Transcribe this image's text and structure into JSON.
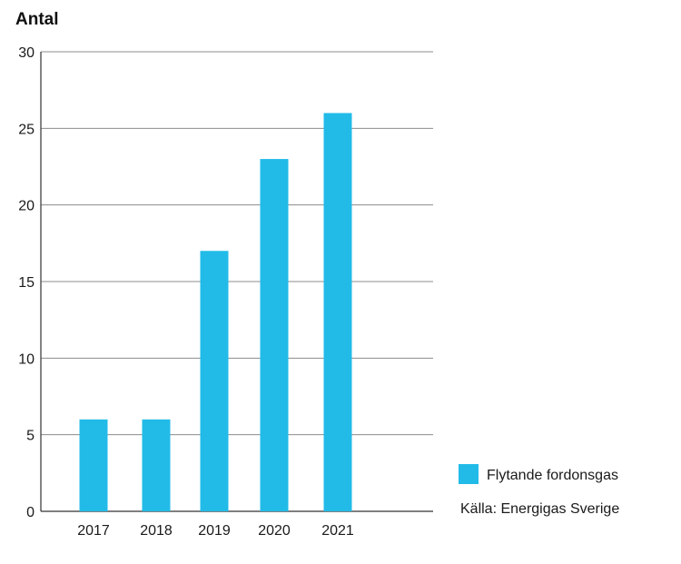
{
  "chart_data": {
    "type": "bar",
    "ylabel": "Antal",
    "xlabel": "",
    "categories": [
      "2017",
      "2018",
      "2019",
      "2020",
      "2021"
    ],
    "series": [
      {
        "name": "Flytande fordonsgas",
        "values": [
          6,
          6,
          17,
          23,
          26
        ],
        "color": "#22BBE8"
      }
    ],
    "ylim": [
      0,
      30
    ],
    "yticks": [
      "0",
      "5",
      "10",
      "15",
      "20",
      "25",
      "30"
    ],
    "grid": true,
    "legend_position": "right"
  },
  "source": "Källa: Energigas Sverige",
  "colors": {
    "bar": "#22BBE8",
    "grid": "#8c8c8c",
    "axis": "#333333"
  }
}
